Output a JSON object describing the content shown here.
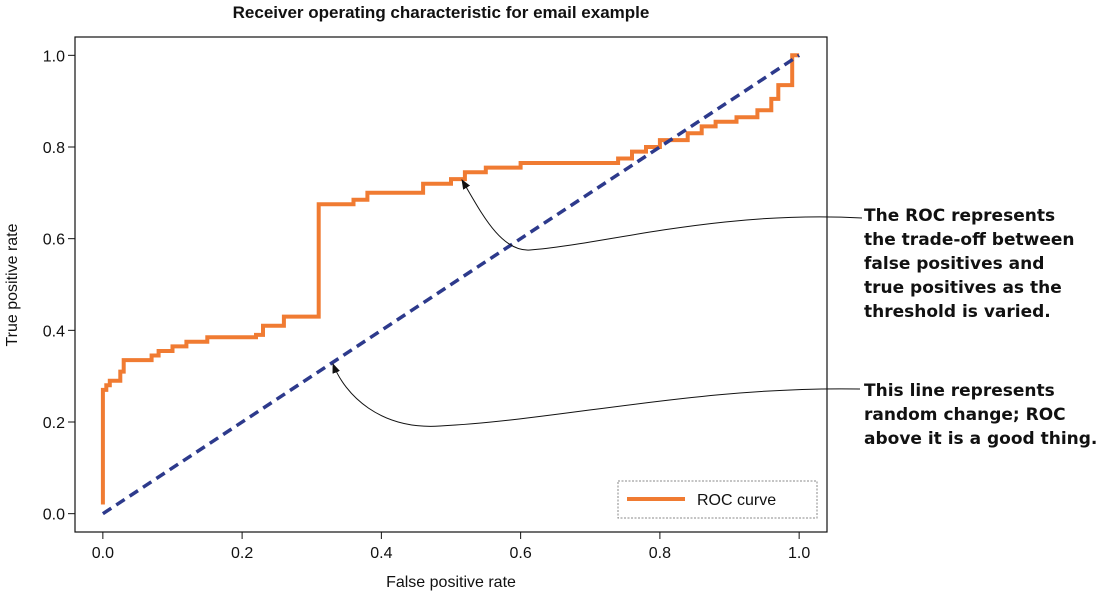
{
  "chart_data": {
    "type": "line",
    "title": "Receiver operating characteristic for email example",
    "xlabel": "False positive rate",
    "ylabel": "True positive rate",
    "xlim": [
      -0.04,
      1.04
    ],
    "ylim": [
      -0.04,
      1.04
    ],
    "xticks": [
      "0.0",
      "0.2",
      "0.4",
      "0.6",
      "0.8",
      "1.0"
    ],
    "yticks": [
      "0.0",
      "0.2",
      "0.4",
      "0.6",
      "0.8",
      "1.0"
    ],
    "grid": false,
    "legend_position": "bottom-right",
    "colors": {
      "roc": "#f07b32",
      "diagonal": "#2d3a8c"
    },
    "series": [
      {
        "name": "ROC curve",
        "x": [
          0.0,
          0.0,
          0.005,
          0.005,
          0.01,
          0.01,
          0.025,
          0.025,
          0.03,
          0.03,
          0.07,
          0.07,
          0.08,
          0.08,
          0.1,
          0.1,
          0.12,
          0.12,
          0.15,
          0.15,
          0.22,
          0.22,
          0.23,
          0.23,
          0.26,
          0.26,
          0.31,
          0.31,
          0.36,
          0.36,
          0.38,
          0.38,
          0.46,
          0.46,
          0.5,
          0.5,
          0.52,
          0.52,
          0.55,
          0.55,
          0.6,
          0.6,
          0.74,
          0.74,
          0.76,
          0.76,
          0.78,
          0.78,
          0.8,
          0.8,
          0.84,
          0.84,
          0.86,
          0.86,
          0.88,
          0.88,
          0.91,
          0.91,
          0.94,
          0.94,
          0.96,
          0.96,
          0.97,
          0.97,
          0.99,
          0.99,
          1.0
        ],
        "y": [
          0.02,
          0.27,
          0.27,
          0.28,
          0.28,
          0.29,
          0.29,
          0.31,
          0.31,
          0.335,
          0.335,
          0.345,
          0.345,
          0.355,
          0.355,
          0.365,
          0.365,
          0.375,
          0.375,
          0.385,
          0.385,
          0.39,
          0.39,
          0.41,
          0.41,
          0.43,
          0.43,
          0.675,
          0.675,
          0.685,
          0.685,
          0.7,
          0.7,
          0.72,
          0.72,
          0.73,
          0.73,
          0.745,
          0.745,
          0.755,
          0.755,
          0.765,
          0.765,
          0.775,
          0.775,
          0.79,
          0.79,
          0.8,
          0.8,
          0.815,
          0.815,
          0.83,
          0.83,
          0.845,
          0.845,
          0.855,
          0.855,
          0.865,
          0.865,
          0.88,
          0.88,
          0.905,
          0.905,
          0.935,
          0.935,
          1.0,
          1.0
        ]
      },
      {
        "name": "",
        "x": [
          0.0,
          1.0
        ],
        "y": [
          0.0,
          1.0
        ]
      }
    ],
    "annotations": [
      {
        "lines": [
          "The ROC represents",
          "the trade-off between",
          "false positives and",
          "true positives as the",
          "threshold is varied."
        ],
        "target": [
          0.52,
          0.74
        ]
      },
      {
        "lines": [
          "This line represents",
          "random change; ROC",
          "above it is a good thing."
        ],
        "target": [
          0.33,
          0.33
        ]
      }
    ]
  }
}
